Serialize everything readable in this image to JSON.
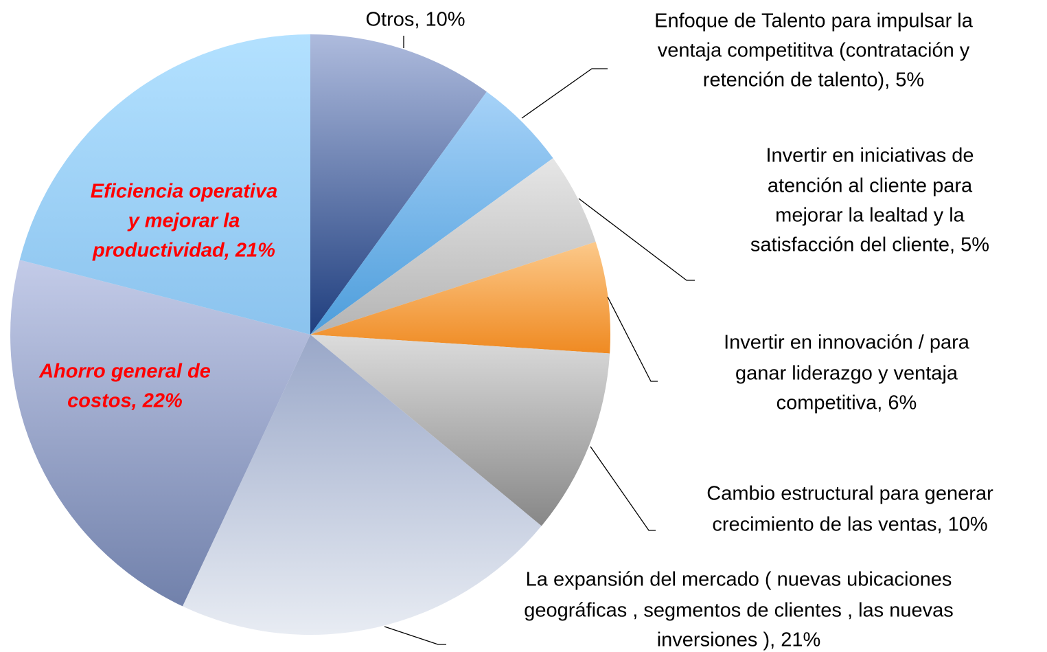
{
  "chart_data": {
    "type": "pie",
    "labels": [
      [
        "Otros, 10%"
      ],
      [
        "Enfoque de Talento para impulsar la",
        "ventaja competititva (contratación y",
        "retención de talento), 5%"
      ],
      [
        "Invertir en iniciativas de",
        "atención al cliente para",
        "mejorar la lealtad y la",
        "satisfacción del cliente, 5%"
      ],
      [
        "Invertir en innovación / para",
        "ganar liderazgo y ventaja",
        "competitiva, 6%"
      ],
      [
        "Cambio estructural para generar",
        "crecimiento de las ventas, 10%"
      ],
      [
        "La expansión del mercado ( nuevas ubicaciones",
        "geográficas , segmentos de clientes , las nuevas",
        "inversiones ), 21%"
      ],
      [
        "Ahorro general de",
        "costos, 22%"
      ],
      [
        "Eficiencia operativa",
        "y mejorar la",
        "productividad, 21%"
      ]
    ],
    "values": [
      10,
      5,
      5,
      6,
      10,
      21,
      22,
      21
    ],
    "colors": [
      [
        "#aebbdd",
        "#1f3e7e"
      ],
      [
        "#a6d2f8",
        "#4d9ddb"
      ],
      [
        "#e6e6e6",
        "#b4b4b4"
      ],
      [
        "#fcc98a",
        "#ef8a22"
      ],
      [
        "#dcdcdc",
        "#878787"
      ],
      [
        "#99a7c8",
        "#e8ecf3"
      ],
      [
        "#c3cbe8",
        "#7181ab"
      ],
      [
        "#b3e1ff",
        "#8bc3ee"
      ]
    ],
    "highlighted": [
      6,
      7
    ],
    "highlight_color": "#ff0000"
  }
}
